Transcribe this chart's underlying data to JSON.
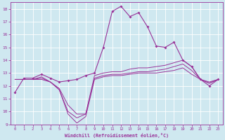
{
  "bg_color": "#cfe8f0",
  "line_color": "#993399",
  "grid_color": "#ffffff",
  "xlabel": "Windchill (Refroidissement éolien,°C)",
  "xlabel_color": "#993399",
  "tick_color": "#993399",
  "xlim": [
    -0.5,
    23.5
  ],
  "ylim": [
    9,
    18.5
  ],
  "yticks": [
    9,
    10,
    11,
    12,
    13,
    14,
    15,
    16,
    17,
    18
  ],
  "xticks": [
    0,
    1,
    2,
    3,
    4,
    5,
    6,
    7,
    8,
    9,
    10,
    11,
    12,
    13,
    14,
    15,
    16,
    17,
    18,
    19,
    20,
    21,
    22,
    23
  ],
  "series_main": [
    11.5,
    12.6,
    12.6,
    12.9,
    12.6,
    12.3,
    12.4,
    12.5,
    12.8,
    13.0,
    15.0,
    17.8,
    18.2,
    17.4,
    17.7,
    16.6,
    15.1,
    15.0,
    15.4,
    14.0,
    13.5,
    12.5,
    12.0,
    12.5
  ],
  "series_flat1": [
    12.5,
    12.5,
    12.5,
    12.7,
    12.3,
    11.8,
    10.5,
    9.8,
    9.8,
    12.8,
    13.0,
    13.1,
    13.1,
    13.3,
    13.4,
    13.4,
    13.5,
    13.6,
    13.8,
    14.0,
    13.5,
    12.5,
    12.3,
    12.5
  ],
  "series_flat2": [
    12.5,
    12.5,
    12.5,
    12.6,
    12.3,
    11.7,
    10.0,
    9.5,
    9.8,
    12.6,
    12.8,
    12.9,
    12.9,
    13.0,
    13.1,
    13.1,
    13.2,
    13.3,
    13.5,
    13.7,
    13.2,
    12.5,
    12.2,
    12.5
  ],
  "series_flat3": [
    12.5,
    12.5,
    12.5,
    12.5,
    12.3,
    11.7,
    9.8,
    9.1,
    9.6,
    12.5,
    12.7,
    12.8,
    12.8,
    12.9,
    13.0,
    13.0,
    13.0,
    13.1,
    13.2,
    13.4,
    12.9,
    12.5,
    12.2,
    12.5
  ]
}
